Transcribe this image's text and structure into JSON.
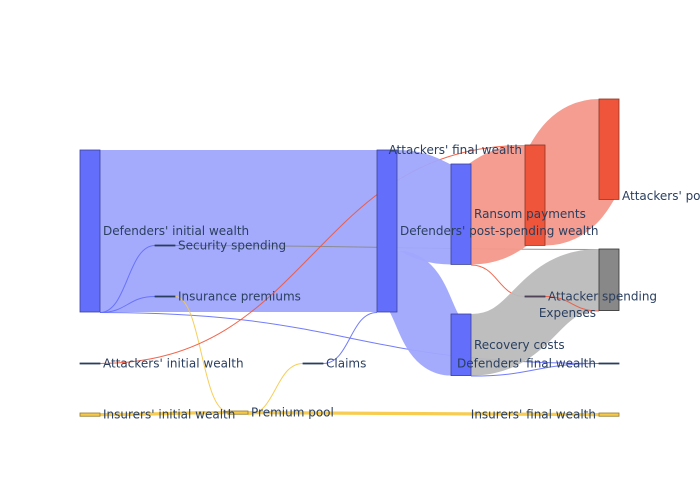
{
  "chart_data": {
    "type": "sankey",
    "nodes": [
      {
        "id": "defenders_initial",
        "label": "Defenders' initial wealth",
        "color": "#636efa",
        "value": 100
      },
      {
        "id": "security_spending",
        "label": "Security spending",
        "color": "#2a3f5f",
        "value": 0
      },
      {
        "id": "insurance_premiums",
        "label": "Insurance premiums",
        "color": "#2a3f5f",
        "value": 0
      },
      {
        "id": "attackers_initial",
        "label": "Attackers' initial wealth",
        "color": "#2a3f5f",
        "value": 0
      },
      {
        "id": "insurers_initial",
        "label": "Insurers' initial wealth",
        "color": "#f7c948",
        "value": 2
      },
      {
        "id": "premium_pool",
        "label": "Premium pool",
        "color": "#f7c948",
        "value": 2
      },
      {
        "id": "claims",
        "label": "Claims",
        "color": "#2a3f5f",
        "value": 0
      },
      {
        "id": "defenders_post_spending",
        "label": "Defenders' post-spending wealth",
        "color": "#636efa",
        "value": 100
      },
      {
        "id": "ransom_payments",
        "label": "Ransom payments",
        "color": "#636efa",
        "value": 62
      },
      {
        "id": "recovery_costs",
        "label": "Recovery costs",
        "color": "#636efa",
        "value": 38
      },
      {
        "id": "attackers_final",
        "label": "Attackers' final wealth",
        "color": "#ef553b",
        "value": 62
      },
      {
        "id": "attackers_post_ransom",
        "label": "Attackers' post-ransom wealth",
        "color": "#ef553b",
        "value": 62
      },
      {
        "id": "expenses",
        "label": "Expenses",
        "color": "#888888",
        "value": 38
      },
      {
        "id": "attacker_spending",
        "label": "Attacker spending",
        "color": "#ef553b",
        "value": 0
      },
      {
        "id": "defenders_final",
        "label": "Defenders' final wealth",
        "color": "#2a3f5f",
        "value": 0
      },
      {
        "id": "insurers_final",
        "label": "Insurers' final wealth",
        "color": "#f7c948",
        "value": 2
      }
    ],
    "links": [
      {
        "source": "defenders_initial",
        "target": "defenders_post_spending",
        "value": 100,
        "color": "#a0a6fc"
      },
      {
        "source": "defenders_initial",
        "target": "security_spending",
        "value": 0,
        "color": "#636efa"
      },
      {
        "source": "defenders_initial",
        "target": "insurance_premiums",
        "value": 0,
        "color": "#636efa"
      },
      {
        "source": "defenders_initial",
        "target": "defenders_final",
        "value": 0,
        "color": "#636efa"
      },
      {
        "source": "security_spending",
        "target": "expenses",
        "value": 0,
        "color": "#888888"
      },
      {
        "source": "insurance_premiums",
        "target": "premium_pool",
        "value": 0,
        "color": "#f7c948"
      },
      {
        "source": "insurers_initial",
        "target": "premium_pool",
        "value": 2,
        "color": "#f7c948"
      },
      {
        "source": "premium_pool",
        "target": "insurers_final",
        "value": 2,
        "color": "#f7c948"
      },
      {
        "source": "premium_pool",
        "target": "claims",
        "value": 0,
        "color": "#f7c948"
      },
      {
        "source": "claims",
        "target": "defenders_post_spending",
        "value": 0,
        "color": "#636efa"
      },
      {
        "source": "attackers_initial",
        "target": "attackers_final",
        "value": 0,
        "color": "#ef553b"
      },
      {
        "source": "defenders_post_spending",
        "target": "ransom_payments",
        "value": 62,
        "color": "#a0a6fc"
      },
      {
        "source": "defenders_post_spending",
        "target": "recovery_costs",
        "value": 38,
        "color": "#a0a6fc"
      },
      {
        "source": "ransom_payments",
        "target": "attackers_final",
        "value": 62,
        "color": "#f4988a"
      },
      {
        "source": "ransom_payments",
        "target": "attacker_spending",
        "value": 0,
        "color": "#ef553b"
      },
      {
        "source": "attackers_final",
        "target": "attackers_post_ransom",
        "value": 62,
        "color": "#f4988a"
      },
      {
        "source": "recovery_costs",
        "target": "expenses",
        "value": 38,
        "color": "#bbbbbb"
      },
      {
        "source": "recovery_costs",
        "target": "defenders_final",
        "value": 0,
        "color": "#636efa"
      },
      {
        "source": "attacker_spending",
        "target": "expenses",
        "value": 0,
        "color": "#ef553b"
      }
    ]
  }
}
